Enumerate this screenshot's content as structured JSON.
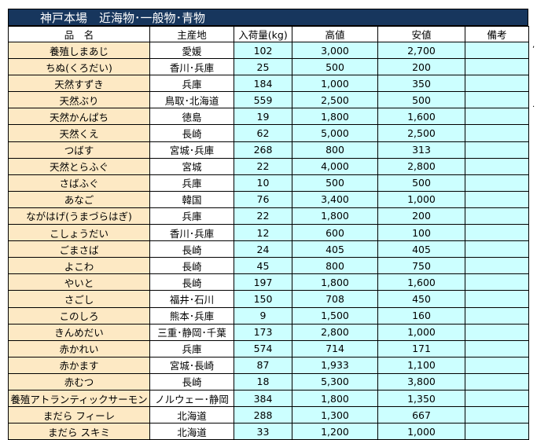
{
  "title": "神戸本場　近海物･一般物･青物",
  "headers": [
    "品　名",
    "主産地",
    "入荷量(kg)",
    "高値",
    "安値",
    "備考"
  ],
  "rows": [
    [
      "養殖しまあじ",
      "愛媛",
      "102",
      "3,000",
      "2,700",
      ""
    ],
    [
      "ちぬ(くろだい)",
      "香川･兵庫",
      "25",
      "500",
      "200",
      ""
    ],
    [
      "天然すずき",
      "兵庫",
      "184",
      "1,000",
      "350",
      ""
    ],
    [
      "天然ぶり",
      "鳥取･北海道",
      "559",
      "2,500",
      "500",
      ""
    ],
    [
      "天然かんぱち",
      "徳島",
      "19",
      "1,800",
      "1,600",
      ""
    ],
    [
      "天然くえ",
      "長崎",
      "62",
      "5,000",
      "2,500",
      ""
    ],
    [
      "つばす",
      "宮城･兵庫",
      "268",
      "800",
      "313",
      ""
    ],
    [
      "天然とらふぐ",
      "宮城",
      "22",
      "4,000",
      "2,800",
      ""
    ],
    [
      "さばふぐ",
      "兵庫",
      "10",
      "500",
      "500",
      ""
    ],
    [
      "あなご",
      "韓国",
      "76",
      "3,400",
      "1,000",
      ""
    ],
    [
      "ながはげ(うまづらはぎ)",
      "兵庫",
      "22",
      "1,800",
      "200",
      ""
    ],
    [
      "こしょうだい",
      "香川･兵庫",
      "12",
      "600",
      "100",
      ""
    ],
    [
      "ごまさば",
      "長崎",
      "24",
      "405",
      "405",
      ""
    ],
    [
      "よこわ",
      "長崎",
      "45",
      "800",
      "750",
      ""
    ],
    [
      "やいと",
      "長崎",
      "197",
      "1,800",
      "1,600",
      ""
    ],
    [
      "さごし",
      "福井･石川",
      "150",
      "708",
      "450",
      ""
    ],
    [
      "このしろ",
      "熊本･兵庫",
      "9",
      "1,500",
      "160",
      ""
    ],
    [
      "きんめだい",
      "三重･静岡･千葉",
      "173",
      "2,800",
      "1,000",
      ""
    ],
    [
      "赤かれい",
      "兵庫",
      "574",
      "714",
      "171",
      ""
    ],
    [
      "赤かます",
      "宮城･長崎",
      "87",
      "1,933",
      "1,100",
      ""
    ],
    [
      "赤むつ",
      "長崎",
      "18",
      "5,300",
      "3,800",
      ""
    ],
    [
      "養殖アトランティックサーモン",
      "ノルウェー･静岡",
      "384",
      "1,800",
      "1,350",
      ""
    ],
    [
      "まだら フィーレ",
      "北海道",
      "288",
      "1,300",
      "667",
      ""
    ],
    [
      "まだら スキミ",
      "北海道",
      "33",
      "1,200",
      "1,000",
      ""
    ]
  ]
}
